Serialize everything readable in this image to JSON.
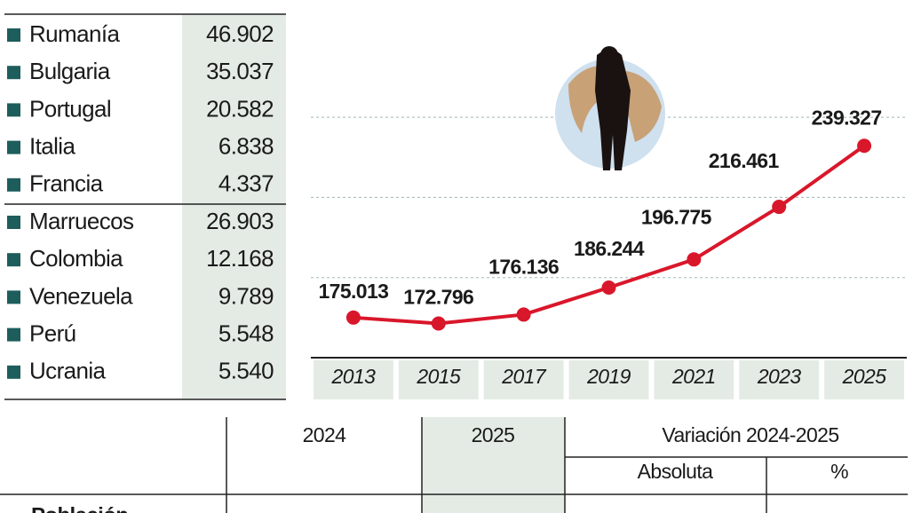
{
  "countries": {
    "group1": [
      [
        "Rumanía",
        "46.902"
      ],
      [
        "Bulgaria",
        "35.037"
      ],
      [
        "Portugal",
        "20.582"
      ],
      [
        "Italia",
        "6.838"
      ],
      [
        "Francia",
        "4.337"
      ]
    ],
    "group2": [
      [
        "Marruecos",
        "26.903"
      ],
      [
        "Colombia",
        "12.168"
      ],
      [
        "Venezuela",
        "9.789"
      ],
      [
        "Perú",
        "5.548"
      ],
      [
        "Ucrania",
        "5.540"
      ]
    ]
  },
  "chart_data": {
    "type": "line",
    "x": [
      2013,
      2015,
      2017,
      2019,
      2021,
      2023,
      2025
    ],
    "xlim": [
      2012,
      2026
    ],
    "xticks": [
      2013,
      2015,
      2017,
      2019,
      2021,
      2023,
      2025
    ],
    "values": [
      175013,
      172796,
      176136,
      186244,
      196775,
      216461,
      239327
    ],
    "value_labels": [
      "175.013",
      "172.796",
      "176.136",
      "186.244",
      "196.775",
      "216.461",
      "239.327"
    ],
    "color": "#d9172b",
    "ylim": [
      160000,
      260000
    ],
    "yticks": [
      190000,
      220000,
      250000
    ],
    "grid": true
  },
  "table": {
    "header": {
      "col1": "2024",
      "col2": "2025",
      "variation": "Variación 2024-2025",
      "absolute": "Absoluta",
      "percent": "%"
    },
    "rows": [
      [
        "Población"
      ]
    ]
  }
}
